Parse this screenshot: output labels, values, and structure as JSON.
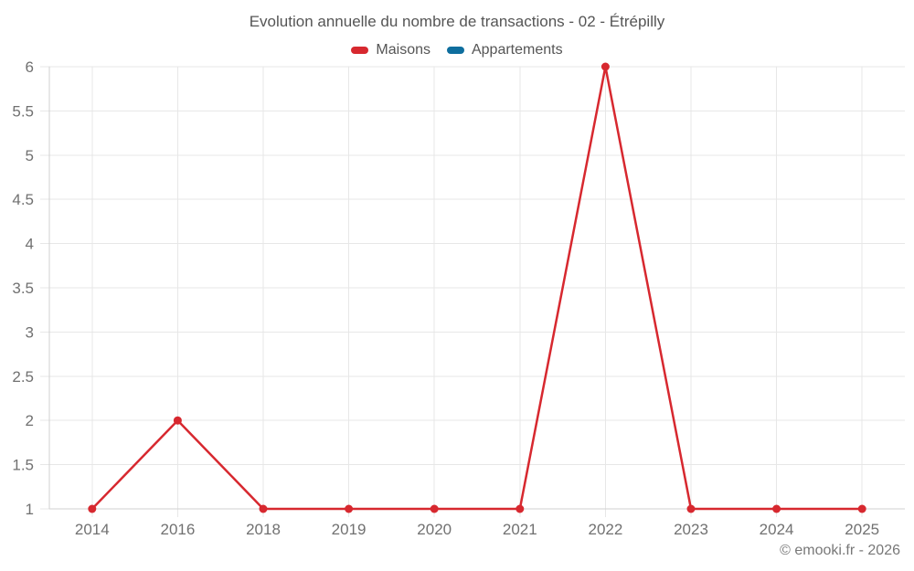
{
  "footer": {
    "watermark": "© emooki.fr - 2026"
  },
  "chart_data": {
    "type": "line",
    "title": "Evolution annuelle du nombre de transactions - 02 - Étrépilly",
    "categories": [
      "2014",
      "2016",
      "2018",
      "2019",
      "2020",
      "2021",
      "2022",
      "2023",
      "2024",
      "2025"
    ],
    "series": [
      {
        "name": "Maisons",
        "color": "#d7282f",
        "values": [
          1,
          2,
          1,
          1,
          1,
          1,
          6,
          1,
          1,
          1
        ]
      },
      {
        "name": "Appartements",
        "color": "#0e6e9e",
        "values": [
          null,
          null,
          null,
          null,
          null,
          null,
          null,
          null,
          null,
          null
        ]
      }
    ],
    "ylim": [
      1,
      6
    ],
    "ytick_labels": [
      "1",
      "1.5",
      "2",
      "2.5",
      "3",
      "3.5",
      "4",
      "4.5",
      "5",
      "5.5",
      "6"
    ],
    "xlabel": "",
    "ylabel": "",
    "grid": true,
    "legend_position": "top"
  }
}
